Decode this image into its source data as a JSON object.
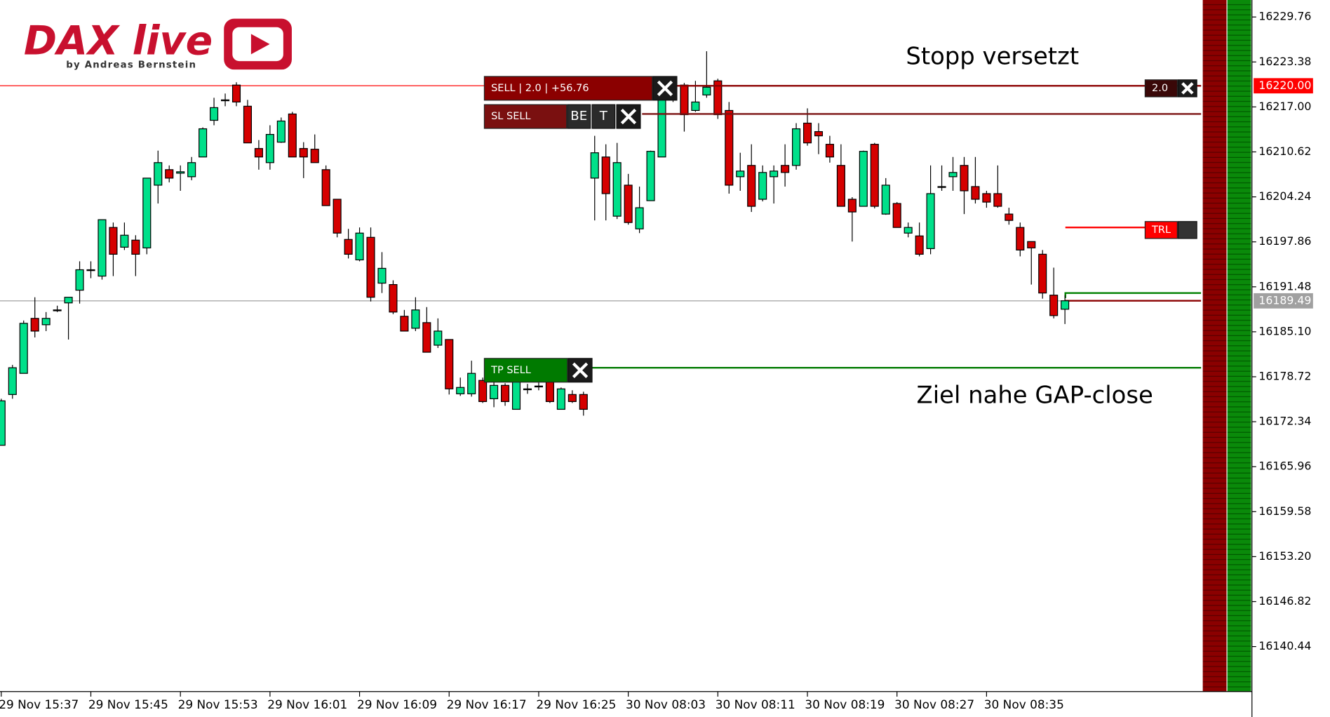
{
  "logo": {
    "title": "DAX live",
    "subtitle": "by Andreas Bernstein"
  },
  "chart_data": {
    "type": "candlestick",
    "up_color": "#00e08a",
    "down_color": "#d50000",
    "categories": [
      "29 Nov 15:37",
      null,
      null,
      null,
      null,
      null,
      null,
      null,
      "29 Nov 15:45",
      null,
      null,
      null,
      null,
      null,
      null,
      null,
      "29 Nov 15:53",
      null,
      null,
      null,
      null,
      null,
      null,
      null,
      "29 Nov 16:01",
      null,
      null,
      null,
      null,
      null,
      null,
      null,
      "29 Nov 16:09",
      null,
      null,
      null,
      null,
      null,
      null,
      null,
      "29 Nov 16:17",
      null,
      null,
      null,
      null,
      null,
      null,
      null,
      "29 Nov 16:25",
      null,
      null,
      null,
      null,
      null,
      null,
      null,
      "30 Nov 08:03",
      null,
      null,
      null,
      null,
      null,
      null,
      null,
      "30 Nov 08:11",
      null,
      null,
      null,
      null,
      null,
      null,
      null,
      "30 Nov 08:19",
      null,
      null,
      null,
      null,
      null,
      null,
      null,
      "30 Nov 08:27",
      null,
      null,
      null,
      null,
      null,
      null,
      null,
      "30 Nov 08:35",
      null,
      null,
      null,
      null,
      null,
      null,
      null
    ],
    "open": [
      16169.0,
      16176.2,
      16179.2,
      16187.0,
      16186.1,
      16188.1,
      16189.2,
      16191.0,
      16193.9,
      16193.0,
      16199.9,
      16197.1,
      16198.1,
      16197.0,
      16205.9,
      16208.1,
      16207.6,
      16207.1,
      16209.9,
      16215.1,
      16217.9,
      16220.1,
      16217.1,
      16211.1,
      16209.1,
      16212.0,
      16216.0,
      16211.1,
      16211.0,
      16208.1,
      16203.9,
      16198.2,
      16195.3,
      16198.5,
      16192.0,
      16191.8,
      16187.3,
      16185.6,
      16186.4,
      16183.2,
      16184.0,
      16176.3,
      16176.3,
      16178.2,
      16175.6,
      16177.5,
      16174.1,
      16177.0,
      16177.4,
      16178.0,
      16174.1,
      16176.2,
      16176.2,
      16206.9,
      16209.9,
      16201.5,
      16205.9,
      16199.7,
      16203.7,
      16209.9,
      16218.3,
      16220.1,
      16216.5,
      16218.7,
      16220.7,
      16216.5,
      16207.1,
      16208.7,
      16203.9,
      16207.1,
      16208.7,
      16208.7,
      16214.7,
      16213.5,
      16211.7,
      16208.7,
      16203.9,
      16202.9,
      16211.7,
      16201.8,
      16203.3,
      16199.1,
      16198.7,
      16196.9,
      16205.6,
      16207.1,
      16208.7,
      16205.7,
      16204.7,
      16204.7,
      16201.8,
      16199.9,
      16197.9,
      16196.1,
      16190.3,
      16188.3
    ],
    "high": [
      16175.6,
      16180.4,
      16186.7,
      16190.0,
      16187.9,
      16188.8,
      16190.0,
      16195.1,
      16195.1,
      16201.0,
      16200.6,
      16200.6,
      16198.8,
      16206.9,
      16210.8,
      16208.7,
      16208.7,
      16209.9,
      16214.1,
      16218.3,
      16218.9,
      16220.5,
      16218.0,
      16212.3,
      16214.4,
      16215.5,
      16216.3,
      16212.0,
      16213.1,
      16208.7,
      16203.9,
      16199.7,
      16199.9,
      16199.9,
      16196.4,
      16192.4,
      16188.2,
      16190.0,
      16188.6,
      16187.0,
      16184.0,
      16178.6,
      16181.0,
      16178.6,
      16178.6,
      16177.8,
      16178.8,
      16177.7,
      16177.9,
      16178.3,
      16177.2,
      16176.8,
      16176.6,
      16212.9,
      16211.7,
      16211.9,
      16207.5,
      16205.7,
      16210.8,
      16220.1,
      16220.1,
      16220.4,
      16220.7,
      16224.9,
      16221.0,
      16217.7,
      16210.5,
      16211.7,
      16208.7,
      16208.7,
      16211.7,
      16214.7,
      16216.8,
      16214.7,
      16212.9,
      16211.7,
      16204.2,
      16210.8,
      16211.9,
      16206.9,
      16203.5,
      16200.6,
      16200.6,
      16208.7,
      16208.7,
      16209.9,
      16209.9,
      16209.9,
      16205.1,
      16208.7,
      16202.7,
      16200.6,
      16197.9,
      16196.7,
      16194.2,
      16190.3
    ],
    "low": [
      16169.0,
      16175.6,
      16179.2,
      16184.3,
      16185.2,
      16187.9,
      16184.0,
      16189.1,
      16192.7,
      16192.5,
      16193.0,
      16196.7,
      16193.0,
      16196.1,
      16203.3,
      16206.3,
      16205.1,
      16206.6,
      16209.9,
      16214.4,
      16217.1,
      16217.1,
      16211.9,
      16208.1,
      16208.1,
      16211.9,
      16209.9,
      16206.9,
      16209.1,
      16203.0,
      16198.5,
      16195.5,
      16195.1,
      16189.4,
      16190.6,
      16187.6,
      16185.2,
      16185.2,
      16182.2,
      16182.8,
      16176.2,
      16176.0,
      16175.9,
      16175.0,
      16174.4,
      16174.6,
      16174.1,
      16176.3,
      16176.8,
      16175.0,
      16174.1,
      16175.0,
      16173.2,
      16200.9,
      16200.9,
      16201.1,
      16200.3,
      16199.1,
      16203.7,
      16209.9,
      16217.7,
      16213.5,
      16216.3,
      16218.3,
      16215.3,
      16204.7,
      16205.1,
      16202.1,
      16203.6,
      16203.3,
      16205.7,
      16208.1,
      16211.5,
      16210.3,
      16209.1,
      16202.9,
      16197.9,
      16202.9,
      16202.6,
      16201.7,
      16199.9,
      16198.5,
      16195.8,
      16196.1,
      16205.1,
      16205.1,
      16201.8,
      16203.3,
      16202.7,
      16202.7,
      16200.3,
      16195.8,
      16191.8,
      16189.8,
      16187.0,
      16186.2
    ],
    "close": [
      16175.3,
      16180.0,
      16186.3,
      16185.2,
      16187.0,
      16188.2,
      16190.0,
      16193.9,
      16193.8,
      16201.0,
      16196.1,
      16198.8,
      16196.1,
      16206.9,
      16209.1,
      16206.9,
      16207.8,
      16209.1,
      16213.9,
      16216.9,
      16218.0,
      16217.7,
      16211.9,
      16209.9,
      16213.1,
      16215.0,
      16209.9,
      16209.9,
      16209.1,
      16203.0,
      16199.1,
      16196.1,
      16199.1,
      16190.0,
      16194.1,
      16187.9,
      16185.2,
      16188.2,
      16182.2,
      16185.2,
      16177.0,
      16177.2,
      16179.2,
      16175.2,
      16177.5,
      16175.2,
      16178.0,
      16176.9,
      16177.3,
      16175.2,
      16177.0,
      16175.2,
      16174.1,
      16210.5,
      16204.7,
      16209.1,
      16200.6,
      16202.7,
      16210.7,
      16219.8,
      16218.3,
      16215.9,
      16217.7,
      16219.8,
      16215.9,
      16205.9,
      16207.9,
      16202.9,
      16207.7,
      16207.9,
      16207.7,
      16213.9,
      16211.9,
      16212.9,
      16209.9,
      16202.9,
      16202.1,
      16210.7,
      16202.9,
      16205.9,
      16199.9,
      16199.9,
      16196.1,
      16204.7,
      16205.7,
      16207.7,
      16205.1,
      16203.9,
      16203.5,
      16202.9,
      16200.9,
      16196.7,
      16197.0,
      16190.6,
      16187.4,
      16189.5
    ],
    "ylim": [
      16134.06,
      16232.17
    ],
    "yticks": [
      16229.76,
      16223.38,
      {
        "value": 16217,
        "label": "16217.00"
      },
      16210.62,
      16204.24,
      16197.86,
      16191.48,
      {
        "value": 16185.1,
        "label": "16185.10"
      },
      16178.72,
      16172.34,
      16165.96,
      16159.58,
      {
        "value": 16153.2,
        "label": "16153.20"
      },
      16146.82,
      16140.44
    ],
    "lines": [
      {
        "value": 16220.0,
        "color": "#ff3030"
      },
      {
        "value": 16189.49,
        "color": "#a8a8a8"
      }
    ],
    "bid_ask": [
      {
        "value": 16190.6,
        "color": "#008000"
      },
      {
        "value": 16189.5,
        "color": "#8b0000"
      }
    ],
    "price_tags": [
      {
        "value": 16220.0,
        "label": "16220.00",
        "color": "#ff0000"
      },
      {
        "value": 16189.49,
        "label": "16189.49",
        "color": "#a0a0a0"
      }
    ],
    "orders": [
      {
        "label": "SELL | 2.0 | +56.76",
        "value": 16220.0,
        "color": "#8b0000"
      },
      {
        "label": "SL SELL",
        "value": 16216.0,
        "color": "#7a1010",
        "buttons": [
          "BE",
          "T"
        ]
      },
      {
        "label": "TP SELL",
        "value": 16180.0,
        "color": "#007a00"
      },
      {
        "label": "2.0",
        "value": 16220.0,
        "color": "#3a0808"
      },
      {
        "label": "TRL",
        "value": 16199.9,
        "color": "#ff0000"
      }
    ],
    "annotations": [
      "Stopp versetzt",
      "Ziel nahe GAP-close"
    ]
  }
}
